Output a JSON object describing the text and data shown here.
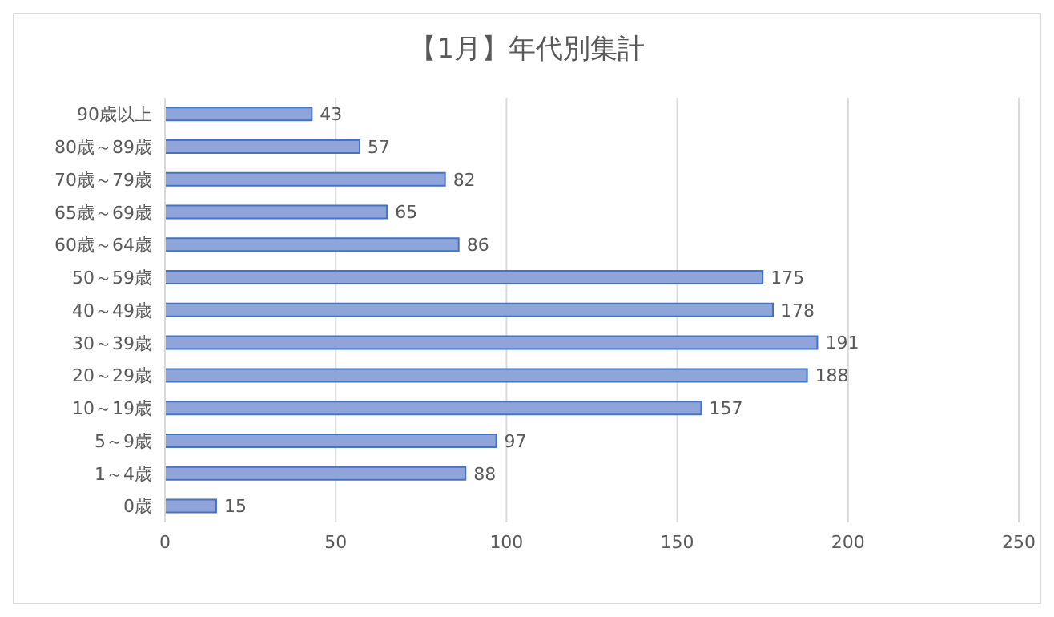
{
  "chart_data": {
    "type": "bar",
    "orientation": "horizontal",
    "title": "【1月】年代別集計",
    "categories": [
      "90歳以上",
      "80歳～89歳",
      "70歳～79歳",
      "65歳～69歳",
      "60歳～64歳",
      "50～59歳",
      "40～49歳",
      "30～39歳",
      "20～29歳",
      "10～19歳",
      "5～9歳",
      "1～4歳",
      "0歳"
    ],
    "values": [
      43,
      57,
      82,
      65,
      86,
      175,
      178,
      191,
      188,
      157,
      97,
      88,
      15
    ],
    "color": "#8fa5d9",
    "xlim": [
      0,
      250
    ],
    "xticks": [
      0,
      50,
      100,
      150,
      200,
      250
    ],
    "grid": "x",
    "data_labels": true
  }
}
